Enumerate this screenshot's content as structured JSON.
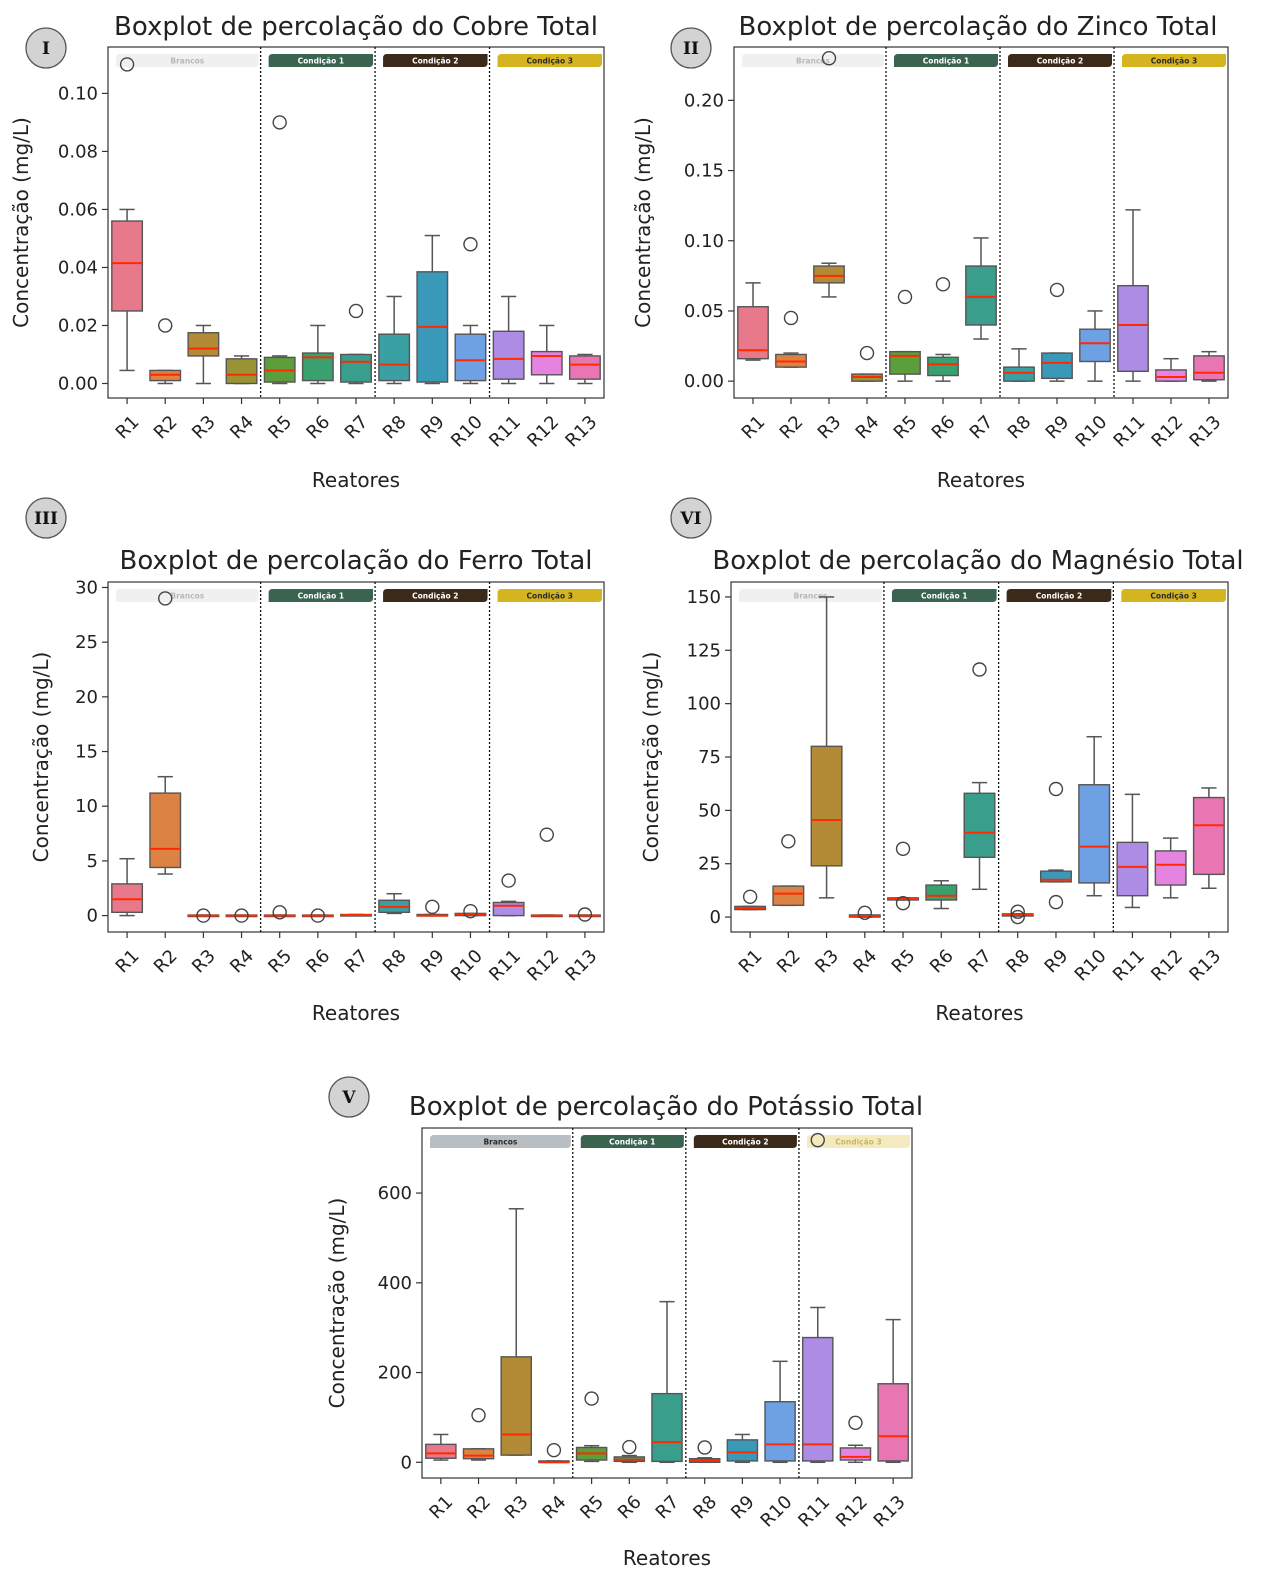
{
  "charts": [
    {
      "id": "cobre",
      "badge": "I",
      "title": "Boxplot de percolação do Cobre Total",
      "ylabel": "Concentração (mg/L)",
      "xlabel": "Reatores",
      "yticks": [
        "0.00",
        "0.02",
        "0.04",
        "0.06",
        "0.08",
        "0.10"
      ],
      "ylim": [
        -0.005,
        0.116
      ],
      "conditions": [
        "Brancos",
        "Condição 1",
        "Condição 2",
        "Condição 3"
      ],
      "condition_style": [
        "faint",
        "normal",
        "normal",
        "normal"
      ]
    },
    {
      "id": "zinco",
      "badge": "II",
      "title": "Boxplot de percolação do Zinco Total",
      "ylabel": "Concentração (mg/L)",
      "xlabel": "Reatores",
      "yticks": [
        "0.00",
        "0.05",
        "0.10",
        "0.15",
        "0.20"
      ],
      "ylim": [
        -0.012,
        0.238
      ],
      "conditions": [
        "Brancos",
        "Condição 1",
        "Condição 2",
        "Condição 3"
      ],
      "condition_style": [
        "faint",
        "normal",
        "normal",
        "normal"
      ]
    },
    {
      "id": "ferro",
      "badge": "III",
      "title": "Boxplot de percolação do Ferro Total",
      "ylabel": "Concentração (mg/L)",
      "xlabel": "Reatores",
      "yticks": [
        "0",
        "5",
        "10",
        "15",
        "20",
        "25",
        "30"
      ],
      "ylim": [
        -1.5,
        30.5
      ],
      "conditions": [
        "Brancos",
        "Condição 1",
        "Condição 2",
        "Condição 3"
      ],
      "condition_style": [
        "faint",
        "normal",
        "normal",
        "normal"
      ]
    },
    {
      "id": "magnesio",
      "badge": "VI",
      "title": "Boxplot de percolação do Magnésio Total",
      "ylabel": "Concentração (mg/L)",
      "xlabel": "Reatores",
      "yticks": [
        "0",
        "25",
        "50",
        "75",
        "100",
        "125",
        "150"
      ],
      "ylim": [
        -7,
        157
      ],
      "conditions": [
        "Brancos",
        "Condição 1",
        "Condição 2",
        "Condição 3"
      ],
      "condition_style": [
        "faint",
        "normal",
        "normal",
        "normal"
      ]
    },
    {
      "id": "potassio",
      "badge": "V",
      "title": "Boxplot de percolação do Potássio Total",
      "ylabel": "Concentração (mg/L)",
      "xlabel": "Reatores",
      "yticks": [
        "0",
        "200",
        "400",
        "600"
      ],
      "ylim": [
        -35,
        745
      ],
      "conditions": [
        "Brancos",
        "Condição 1",
        "Condição 2",
        "Condição 3"
      ],
      "condition_style": [
        "grey",
        "normal",
        "normal",
        "faint-gold"
      ]
    }
  ],
  "reactors": [
    "R1",
    "R2",
    "R3",
    "R4",
    "R5",
    "R6",
    "R7",
    "R8",
    "R9",
    "R10",
    "R11",
    "R12",
    "R13"
  ],
  "reactor_colors": [
    "#e8798b",
    "#dd8245",
    "#b38b37",
    "#9a9333",
    "#5d9e3c",
    "#39a06f",
    "#3a9e8c",
    "#3ba0a3",
    "#3a98b8",
    "#6ea1e3",
    "#ad8ce6",
    "#e584e0",
    "#e876b2"
  ],
  "condition_colors": {
    "Brancos": "#f0f0f0",
    "Condição 1": "#3a6350",
    "Condição 2": "#3b2a1a",
    "Condição 3": "#d4b41f"
  },
  "median_color": "#ff2a00",
  "chart_data": [
    {
      "type": "box",
      "title": "Boxplot de percolação do Cobre Total",
      "xlabel": "Reatores",
      "ylabel": "Concentração (mg/L)",
      "categories": [
        "R1",
        "R2",
        "R3",
        "R4",
        "R5",
        "R6",
        "R7",
        "R8",
        "R9",
        "R10",
        "R11",
        "R12",
        "R13"
      ],
      "boxes": [
        {
          "q1": 0.025,
          "med": 0.0415,
          "q3": 0.056,
          "lo": 0.0045,
          "hi": 0.06,
          "out": [
            0.11
          ]
        },
        {
          "q1": 0.001,
          "med": 0.003,
          "q3": 0.0045,
          "lo": 0.0,
          "hi": 0.0045,
          "out": [
            0.02
          ]
        },
        {
          "q1": 0.0095,
          "med": 0.012,
          "q3": 0.0175,
          "lo": 0.0,
          "hi": 0.02,
          "out": []
        },
        {
          "q1": 0.0,
          "med": 0.003,
          "q3": 0.0085,
          "lo": 0.0,
          "hi": 0.0095,
          "out": []
        },
        {
          "q1": 0.0005,
          "med": 0.0045,
          "q3": 0.009,
          "lo": 0.0,
          "hi": 0.0095,
          "out": [
            0.09
          ]
        },
        {
          "q1": 0.001,
          "med": 0.009,
          "q3": 0.0105,
          "lo": 0.0,
          "hi": 0.02,
          "out": []
        },
        {
          "q1": 0.0005,
          "med": 0.0075,
          "q3": 0.01,
          "lo": 0.0,
          "hi": 0.01,
          "out": [
            0.025
          ]
        },
        {
          "q1": 0.001,
          "med": 0.0065,
          "q3": 0.017,
          "lo": 0.0,
          "hi": 0.03,
          "out": []
        },
        {
          "q1": 0.0005,
          "med": 0.0195,
          "q3": 0.0385,
          "lo": 0.0,
          "hi": 0.051,
          "out": []
        },
        {
          "q1": 0.001,
          "med": 0.008,
          "q3": 0.017,
          "lo": 0.0,
          "hi": 0.02,
          "out": [
            0.048
          ]
        },
        {
          "q1": 0.0015,
          "med": 0.0085,
          "q3": 0.018,
          "lo": 0.0,
          "hi": 0.03,
          "out": []
        },
        {
          "q1": 0.003,
          "med": 0.0095,
          "q3": 0.011,
          "lo": 0.0,
          "hi": 0.02,
          "out": []
        },
        {
          "q1": 0.0015,
          "med": 0.0065,
          "q3": 0.0095,
          "lo": 0.0,
          "hi": 0.01,
          "out": []
        }
      ]
    },
    {
      "type": "box",
      "title": "Boxplot de percolação do Zinco Total",
      "xlabel": "Reatores",
      "ylabel": "Concentração (mg/L)",
      "categories": [
        "R1",
        "R2",
        "R3",
        "R4",
        "R5",
        "R6",
        "R7",
        "R8",
        "R9",
        "R10",
        "R11",
        "R12",
        "R13"
      ],
      "boxes": [
        {
          "q1": 0.016,
          "med": 0.022,
          "q3": 0.053,
          "lo": 0.015,
          "hi": 0.07,
          "out": []
        },
        {
          "q1": 0.01,
          "med": 0.014,
          "q3": 0.019,
          "lo": 0.01,
          "hi": 0.02,
          "out": [
            0.045
          ]
        },
        {
          "q1": 0.07,
          "med": 0.075,
          "q3": 0.082,
          "lo": 0.06,
          "hi": 0.084,
          "out": [
            0.23
          ]
        },
        {
          "q1": 0.0,
          "med": 0.003,
          "q3": 0.005,
          "lo": 0.0,
          "hi": 0.005,
          "out": [
            0.02
          ]
        },
        {
          "q1": 0.005,
          "med": 0.018,
          "q3": 0.021,
          "lo": 0.0,
          "hi": 0.021,
          "out": [
            0.06
          ]
        },
        {
          "q1": 0.004,
          "med": 0.012,
          "q3": 0.017,
          "lo": 0.0,
          "hi": 0.019,
          "out": [
            0.069
          ]
        },
        {
          "q1": 0.04,
          "med": 0.06,
          "q3": 0.082,
          "lo": 0.03,
          "hi": 0.102,
          "out": []
        },
        {
          "q1": 0.0,
          "med": 0.006,
          "q3": 0.01,
          "lo": 0.0,
          "hi": 0.023,
          "out": []
        },
        {
          "q1": 0.002,
          "med": 0.013,
          "q3": 0.02,
          "lo": 0.0,
          "hi": 0.02,
          "out": [
            0.065
          ]
        },
        {
          "q1": 0.014,
          "med": 0.027,
          "q3": 0.037,
          "lo": 0.0,
          "hi": 0.05,
          "out": []
        },
        {
          "q1": 0.007,
          "med": 0.04,
          "q3": 0.068,
          "lo": 0.0,
          "hi": 0.122,
          "out": []
        },
        {
          "q1": 0.0,
          "med": 0.003,
          "q3": 0.008,
          "lo": 0.0,
          "hi": 0.016,
          "out": []
        },
        {
          "q1": 0.001,
          "med": 0.006,
          "q3": 0.018,
          "lo": 0.0,
          "hi": 0.021,
          "out": []
        }
      ]
    },
    {
      "type": "box",
      "title": "Boxplot de percolação do Ferro Total",
      "xlabel": "Reatores",
      "ylabel": "Concentração (mg/L)",
      "categories": [
        "R1",
        "R2",
        "R3",
        "R4",
        "R5",
        "R6",
        "R7",
        "R8",
        "R9",
        "R10",
        "R11",
        "R12",
        "R13"
      ],
      "boxes": [
        {
          "q1": 0.3,
          "med": 1.5,
          "q3": 2.9,
          "lo": 0.0,
          "hi": 5.2,
          "out": []
        },
        {
          "q1": 4.4,
          "med": 6.1,
          "q3": 11.2,
          "lo": 3.8,
          "hi": 12.7,
          "out": [
            29.0
          ]
        },
        {
          "q1": 0.0,
          "med": 0.0,
          "q3": 0.05,
          "lo": 0.0,
          "hi": 0.05,
          "out": [
            0.0
          ]
        },
        {
          "q1": 0.0,
          "med": 0.0,
          "q3": 0.05,
          "lo": 0.0,
          "hi": 0.05,
          "out": [
            0.0
          ]
        },
        {
          "q1": 0.0,
          "med": 0.0,
          "q3": 0.05,
          "lo": 0.0,
          "hi": 0.05,
          "out": [
            0.3
          ]
        },
        {
          "q1": 0.0,
          "med": 0.0,
          "q3": 0.05,
          "lo": 0.0,
          "hi": 0.05,
          "out": [
            0.0
          ]
        },
        {
          "q1": 0.0,
          "med": 0.05,
          "q3": 0.1,
          "lo": 0.0,
          "hi": 0.1,
          "out": []
        },
        {
          "q1": 0.3,
          "med": 0.8,
          "q3": 1.4,
          "lo": 0.2,
          "hi": 2.0,
          "out": []
        },
        {
          "q1": 0.0,
          "med": 0.0,
          "q3": 0.1,
          "lo": 0.0,
          "hi": 0.1,
          "out": [
            0.8
          ]
        },
        {
          "q1": 0.0,
          "med": 0.1,
          "q3": 0.2,
          "lo": 0.0,
          "hi": 0.2,
          "out": [
            0.4
          ]
        },
        {
          "q1": 0.0,
          "med": 0.9,
          "q3": 1.2,
          "lo": 0.0,
          "hi": 1.3,
          "out": [
            3.2
          ]
        },
        {
          "q1": 0.0,
          "med": 0.0,
          "q3": 0.05,
          "lo": 0.0,
          "hi": 0.05,
          "out": [
            7.4
          ]
        },
        {
          "q1": 0.0,
          "med": 0.0,
          "q3": 0.05,
          "lo": 0.0,
          "hi": 0.05,
          "out": [
            0.1
          ]
        }
      ]
    },
    {
      "type": "box",
      "title": "Boxplot de percolação do Magnésio Total",
      "xlabel": "Reatores",
      "ylabel": "Concentração (mg/L)",
      "categories": [
        "R1",
        "R2",
        "R3",
        "R4",
        "R5",
        "R6",
        "R7",
        "R8",
        "R9",
        "R10",
        "R11",
        "R12",
        "R13"
      ],
      "boxes": [
        {
          "q1": 3.5,
          "med": 4.2,
          "q3": 5.0,
          "lo": 3.5,
          "hi": 5.0,
          "out": [
            9.5
          ]
        },
        {
          "q1": 5.5,
          "med": 11.0,
          "q3": 14.5,
          "lo": 5.5,
          "hi": 14.5,
          "out": [
            35.5
          ]
        },
        {
          "q1": 24.0,
          "med": 45.5,
          "q3": 80.0,
          "lo": 9.0,
          "hi": 150.0,
          "out": []
        },
        {
          "q1": 0.0,
          "med": 0.5,
          "q3": 1.0,
          "lo": 0.0,
          "hi": 1.0,
          "out": [
            2.0
          ]
        },
        {
          "q1": 8.0,
          "med": 8.5,
          "q3": 9.0,
          "lo": 8.0,
          "hi": 9.0,
          "out": [
            32.0,
            6.5
          ]
        },
        {
          "q1": 8.0,
          "med": 10.0,
          "q3": 15.0,
          "lo": 4.0,
          "hi": 17.0,
          "out": []
        },
        {
          "q1": 28.0,
          "med": 39.5,
          "q3": 58.0,
          "lo": 13.0,
          "hi": 63.0,
          "out": [
            116.0
          ]
        },
        {
          "q1": 0.5,
          "med": 1.0,
          "q3": 1.5,
          "lo": 0.5,
          "hi": 1.5,
          "out": [
            2.5,
            0.0
          ]
        },
        {
          "q1": 16.5,
          "med": 17.5,
          "q3": 21.5,
          "lo": 16.5,
          "hi": 22.0,
          "out": [
            60.0,
            7.0
          ]
        },
        {
          "q1": 16.0,
          "med": 33.0,
          "q3": 62.0,
          "lo": 10.0,
          "hi": 84.5,
          "out": []
        },
        {
          "q1": 10.0,
          "med": 23.5,
          "q3": 35.0,
          "lo": 4.5,
          "hi": 57.5,
          "out": []
        },
        {
          "q1": 15.0,
          "med": 24.5,
          "q3": 31.0,
          "lo": 9.0,
          "hi": 37.0,
          "out": []
        },
        {
          "q1": 20.0,
          "med": 43.0,
          "q3": 56.0,
          "lo": 13.5,
          "hi": 60.5,
          "out": []
        }
      ]
    },
    {
      "type": "box",
      "title": "Boxplot de percolação do Potássio Total",
      "xlabel": "Reatores",
      "ylabel": "Concentração (mg/L)",
      "categories": [
        "R1",
        "R2",
        "R3",
        "R4",
        "R5",
        "R6",
        "R7",
        "R8",
        "R9",
        "R10",
        "R11",
        "R12",
        "R13"
      ],
      "boxes": [
        {
          "q1": 9,
          "med": 20,
          "q3": 40,
          "lo": 5,
          "hi": 62,
          "out": []
        },
        {
          "q1": 8,
          "med": 15,
          "q3": 30,
          "lo": 5,
          "hi": 30,
          "out": [
            105
          ]
        },
        {
          "q1": 16,
          "med": 62,
          "q3": 235,
          "lo": 16,
          "hi": 565,
          "out": []
        },
        {
          "q1": 0,
          "med": 0,
          "q3": 3,
          "lo": 0,
          "hi": 3,
          "out": [
            27
          ]
        },
        {
          "q1": 5,
          "med": 20,
          "q3": 33,
          "lo": 2,
          "hi": 37,
          "out": [
            142
          ]
        },
        {
          "q1": 2,
          "med": 6,
          "q3": 12,
          "lo": 0,
          "hi": 15,
          "out": [
            34
          ]
        },
        {
          "q1": 2,
          "med": 45,
          "q3": 153,
          "lo": 0,
          "hi": 358,
          "out": []
        },
        {
          "q1": 0,
          "med": 4,
          "q3": 8,
          "lo": 0,
          "hi": 10,
          "out": [
            33
          ]
        },
        {
          "q1": 3,
          "med": 22,
          "q3": 50,
          "lo": 0,
          "hi": 62,
          "out": []
        },
        {
          "q1": 3,
          "med": 40,
          "q3": 135,
          "lo": 0,
          "hi": 225,
          "out": []
        },
        {
          "q1": 3,
          "med": 40,
          "q3": 278,
          "lo": 0,
          "hi": 345,
          "out": [
            718
          ]
        },
        {
          "q1": 5,
          "med": 12,
          "q3": 32,
          "lo": 0,
          "hi": 38,
          "out": [
            88
          ]
        },
        {
          "q1": 3,
          "med": 58,
          "q3": 175,
          "lo": 0,
          "hi": 318,
          "out": []
        }
      ]
    }
  ]
}
